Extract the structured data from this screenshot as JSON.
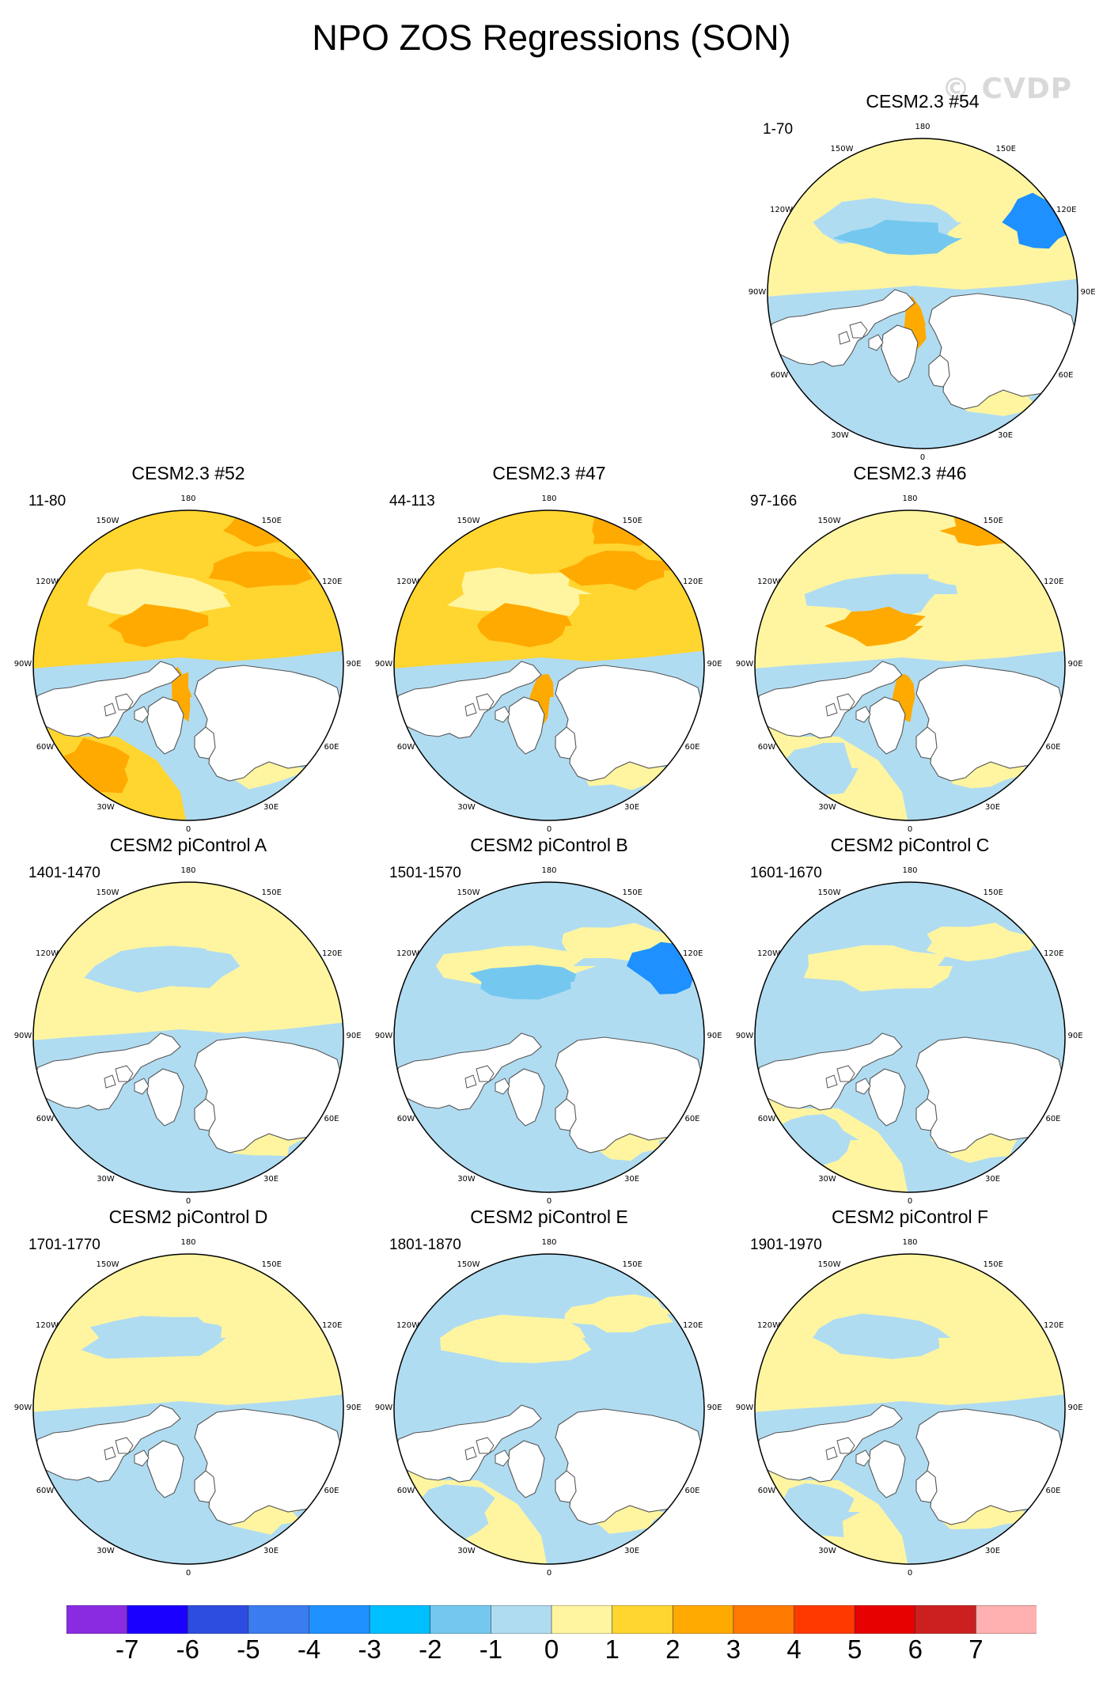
{
  "title": "NPO ZOS Regressions (SON)",
  "watermark": "© CVDP",
  "lon_labels": [
    "180",
    "150E",
    "120E",
    "90E",
    "60E",
    "30E",
    "0",
    "30W",
    "60W",
    "90W",
    "120W",
    "150W"
  ],
  "colors": {
    "land": "#ffffff",
    "coast": "#555555",
    "levels": [
      "#8a2be2",
      "#1a00ff",
      "#2d4de0",
      "#3b7cf0",
      "#1e90ff",
      "#00bfff",
      "#74c8f0",
      "#b0dcf2",
      "#fff5a0",
      "#ffd530",
      "#ffaa00",
      "#ff7a00",
      "#ff3a00",
      "#e60000",
      "#cc2020",
      "#ffb0b0"
    ]
  },
  "panels": [
    {
      "name": "CESM2.3 #54",
      "years": "1-70",
      "style": {
        "pac": 8,
        "atl": 7,
        "hl": "neg",
        "alt": "warmArctic"
      }
    },
    {
      "name": "CESM2.3 #52",
      "years": "11-80",
      "style": {
        "pac": 9,
        "atl": 9,
        "hl": "pos",
        "alt": "warmArctic"
      }
    },
    {
      "name": "CESM2.3 #47",
      "years": "44-113",
      "style": {
        "pac": 9,
        "atl": 7,
        "hl": "pos",
        "alt": "warmArctic"
      }
    },
    {
      "name": "CESM2.3 #46",
      "years": "97-166",
      "style": {
        "pac": 8,
        "atl": 8,
        "hl": "pos",
        "alt": "warmArctic"
      }
    },
    {
      "name": "CESM2 piControl A",
      "years": "1401-1470",
      "style": {
        "pac": 8,
        "atl": 7,
        "hl": "none",
        "alt": "cool"
      }
    },
    {
      "name": "CESM2 piControl B",
      "years": "1501-1570",
      "style": {
        "pac": 7,
        "atl": 7,
        "hl": "neg",
        "alt": "cool"
      }
    },
    {
      "name": "CESM2 piControl C",
      "years": "1601-1670",
      "style": {
        "pac": 7,
        "atl": 8,
        "hl": "none",
        "alt": "cool"
      }
    },
    {
      "name": "CESM2 piControl D",
      "years": "1701-1770",
      "style": {
        "pac": 8,
        "atl": 7,
        "hl": "none",
        "alt": "cool"
      }
    },
    {
      "name": "CESM2 piControl E",
      "years": "1801-1870",
      "style": {
        "pac": 7,
        "atl": 8,
        "hl": "none",
        "alt": "cool"
      }
    },
    {
      "name": "CESM2 piControl F",
      "years": "1901-1970",
      "style": {
        "pac": 8,
        "atl": 8,
        "hl": "none",
        "alt": "cool"
      }
    }
  ],
  "colorbar": {
    "labels": [
      "-7",
      "-6",
      "-5",
      "-4",
      "-3",
      "-2",
      "-1",
      "0",
      "1",
      "2",
      "3",
      "4",
      "5",
      "6",
      "7"
    ]
  }
}
